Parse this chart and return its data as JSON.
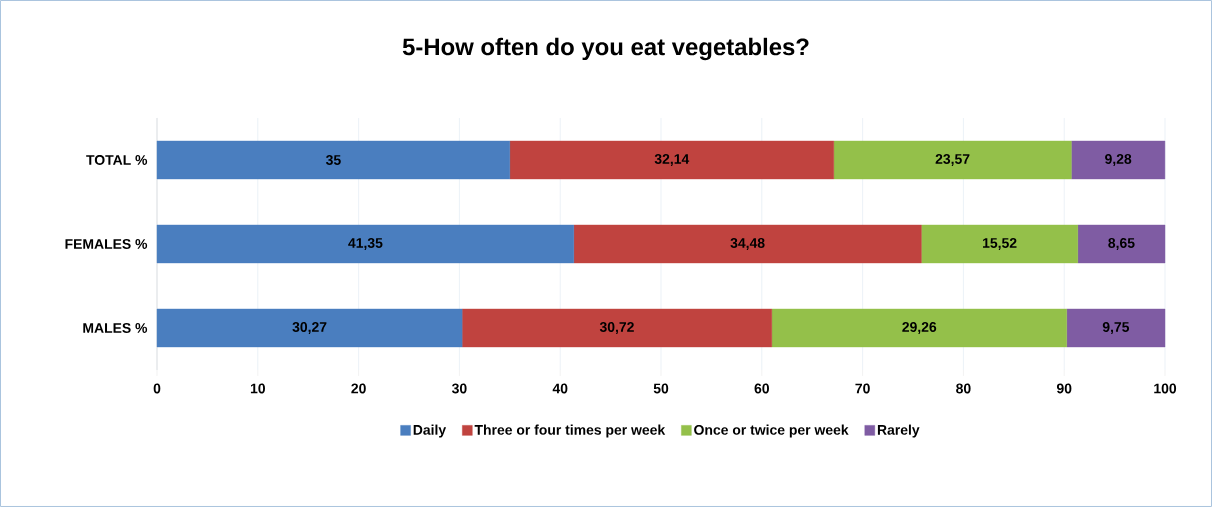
{
  "chart_data": {
    "type": "bar",
    "orientation": "horizontal",
    "stacked": true,
    "title": "5-How often do you eat  vegetables?",
    "categories": [
      "TOTAL %",
      "FEMALES %",
      "MALES %"
    ],
    "series": [
      {
        "name": "Daily",
        "color": "#4a7ebf",
        "values": [
          35,
          41.35,
          30.27
        ],
        "value_labels": [
          "35",
          "41,35",
          "30,27"
        ]
      },
      {
        "name": "Three or four times per week",
        "color": "#c0433f",
        "values": [
          32.14,
          34.48,
          30.72
        ],
        "value_labels": [
          "32,14",
          "34,48",
          "30,72"
        ]
      },
      {
        "name": "Once or twice per week",
        "color": "#94c04a",
        "values": [
          23.57,
          15.52,
          29.26
        ],
        "value_labels": [
          "23,57",
          "15,52",
          "29,26"
        ]
      },
      {
        "name": "Rarely",
        "color": "#7f5ca3",
        "values": [
          9.28,
          8.65,
          9.75
        ],
        "value_labels": [
          "9,28",
          "8,65",
          "9,75"
        ]
      }
    ],
    "xlim": [
      0,
      100
    ],
    "xticks": [
      0,
      10,
      20,
      30,
      40,
      50,
      60,
      70,
      80,
      90,
      100
    ],
    "grid": "x",
    "legend": "bottom"
  }
}
